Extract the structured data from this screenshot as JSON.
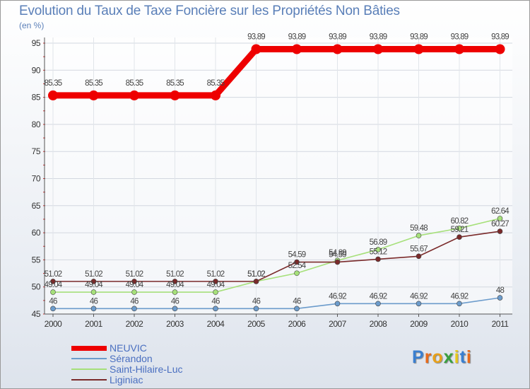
{
  "chart_data": {
    "type": "line",
    "title": "Evolution du Taux de Taxe Foncière sur les Propriétés Non Bâties",
    "ylabel": "(en %)",
    "ylim": [
      45,
      95
    ],
    "yticks": [
      45,
      50,
      55,
      60,
      65,
      70,
      75,
      80,
      85,
      90,
      95
    ],
    "categories": [
      "2000",
      "2001",
      "2002",
      "2003",
      "2004",
      "2005",
      "2006",
      "2007",
      "2008",
      "2009",
      "2010",
      "2011"
    ],
    "series": [
      {
        "name": "NEUVIC",
        "color": "#ee0000",
        "values": [
          85.35,
          85.35,
          85.35,
          85.35,
          85.35,
          93.89,
          93.89,
          93.89,
          93.89,
          93.89,
          93.89,
          93.89
        ]
      },
      {
        "name": "Sérandon",
        "color": "#6c9ccc",
        "values": [
          46,
          46,
          46,
          46,
          46,
          46,
          46,
          46.92,
          46.92,
          46.92,
          46.92,
          48
        ]
      },
      {
        "name": "Saint-Hilaire-Luc",
        "color": "#a6e07a",
        "values": [
          49.04,
          49.04,
          49.04,
          49.04,
          49.04,
          51.02,
          52.54,
          54.89,
          56.89,
          59.48,
          60.82,
          62.64
        ]
      },
      {
        "name": "Liginiac",
        "color": "#7a2a2a",
        "values": [
          51.02,
          51.02,
          51.02,
          51.02,
          51.02,
          51.02,
          54.59,
          54.59,
          55.12,
          55.67,
          59.21,
          60.27
        ]
      }
    ]
  },
  "value_labels": {
    "NEUVIC": [
      "85.35",
      "85.35",
      "85.35",
      "85.35",
      "85.35",
      "93.89",
      "93.89",
      "93.89",
      "93.89",
      "93.89",
      "93.89",
      "93.89"
    ],
    "Sérandon": [
      "46",
      "46",
      "46",
      "46",
      "46",
      "46",
      "46",
      "46.92",
      "46.92",
      "46.92",
      "46.92",
      "48"
    ],
    "Saint-Hilaire-Luc": [
      "49.04",
      "49.04",
      "49.04",
      "49.04",
      "49.04",
      "51.02",
      "52.54",
      "54.89",
      "56.89",
      "59.48",
      "60.82",
      "62.64"
    ],
    "Liginiac": [
      "51.02",
      "51.02",
      "51.02",
      "51.02",
      "51.02",
      "51.02",
      "54.59",
      "54.59",
      "55.12",
      "55.67",
      "59.21",
      "60.27"
    ]
  },
  "legend": [
    "NEUVIC",
    "Sérandon",
    "Saint-Hilaire-Luc",
    "Liginiac"
  ],
  "logo": {
    "letters": [
      "P",
      "r",
      "o",
      "x",
      "i",
      "t",
      "i"
    ],
    "colors": [
      "#3a7fd0",
      "#e86a1a",
      "#e8a11a",
      "#3aa040",
      "#e8c81a",
      "#3a7fd0",
      "#e86a1a"
    ]
  }
}
